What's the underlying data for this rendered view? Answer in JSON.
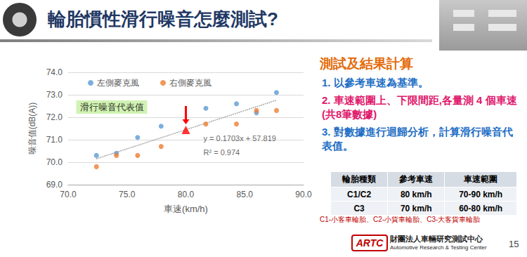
{
  "slide": {
    "title": "輪胎慣性滑行噪音怎麼測試?",
    "section_heading": "測試及結果計算",
    "steps": [
      "1. 以參考車速為基準。",
      "2. 車速範圍上、下限間距,各量測 4 個車速(共8筆數據)",
      "3. 對數據進行迴歸分析，計算滑行噪音代表值。"
    ],
    "table": {
      "header": [
        "輪胎種類",
        "參考車速",
        "車速範圍"
      ],
      "rows": [
        [
          "C1/C2",
          "80 km/h",
          "70-90 km/h"
        ],
        [
          "C3",
          "70 km/h",
          "60-80 km/h"
        ]
      ]
    },
    "footnote": "C1-小客車輪胎、C2-小貨車輪胎、C3-大客貨車輪胎",
    "footer": {
      "logo": "ARTC",
      "org_zh": "財團法人車輛研究測試中心",
      "org_en": "Automotive Research & Testing Center",
      "page": "15"
    }
  },
  "chart_data": {
    "type": "scatter",
    "x_label": "車速(km/h)",
    "y_label": "噪音值(dB(A))",
    "xlim": [
      70,
      90
    ],
    "xticks": [
      {
        "value": 70,
        "label": "70.0"
      },
      {
        "value": 75,
        "label": "75.0"
      },
      {
        "value": 80,
        "label": "80.0"
      },
      {
        "value": 85,
        "label": "85.0"
      },
      {
        "value": 90,
        "label": "90.0"
      }
    ],
    "ylim": [
      69,
      74
    ],
    "yticks": [
      {
        "value": 69,
        "label": "69.0"
      },
      {
        "value": 70,
        "label": "70.0"
      },
      {
        "value": 71,
        "label": "71.0"
      },
      {
        "value": 72,
        "label": "72.0"
      },
      {
        "value": 73,
        "label": "73.0"
      },
      {
        "value": 74,
        "label": "74.0"
      }
    ],
    "grid": true,
    "legend": "top",
    "series": [
      {
        "name": "左側麥克風",
        "color": "#5b9bd5",
        "marker": "circle",
        "x": [
          72.4,
          74.1,
          75.9,
          77.9,
          81.7,
          84.3,
          86.0,
          87.7
        ],
        "values": [
          70.3,
          70.4,
          71.1,
          71.6,
          72.4,
          72.6,
          72.2,
          73.1
        ]
      },
      {
        "name": "右側麥克風",
        "color": "#ed7d31",
        "marker": "circle",
        "x": [
          72.4,
          74.1,
          75.9,
          77.9,
          81.7,
          84.3,
          86.0,
          87.7
        ],
        "values": [
          69.8,
          70.3,
          70.3,
          70.7,
          71.7,
          71.7,
          72.3,
          72.3
        ]
      }
    ],
    "trendline": {
      "x": [
        72.4,
        87.7
      ],
      "values": [
        70.15,
        72.76
      ],
      "color": "#8c8c8c",
      "line_style": "dotted",
      "equation": "y = 0.1703x + 57.819",
      "r_squared": "R² = 0.974"
    },
    "representative_value": {
      "label": "滑行噪音代表值",
      "x": 80,
      "value": 71.44,
      "color": "#ff0000",
      "marker": "triangle"
    }
  }
}
